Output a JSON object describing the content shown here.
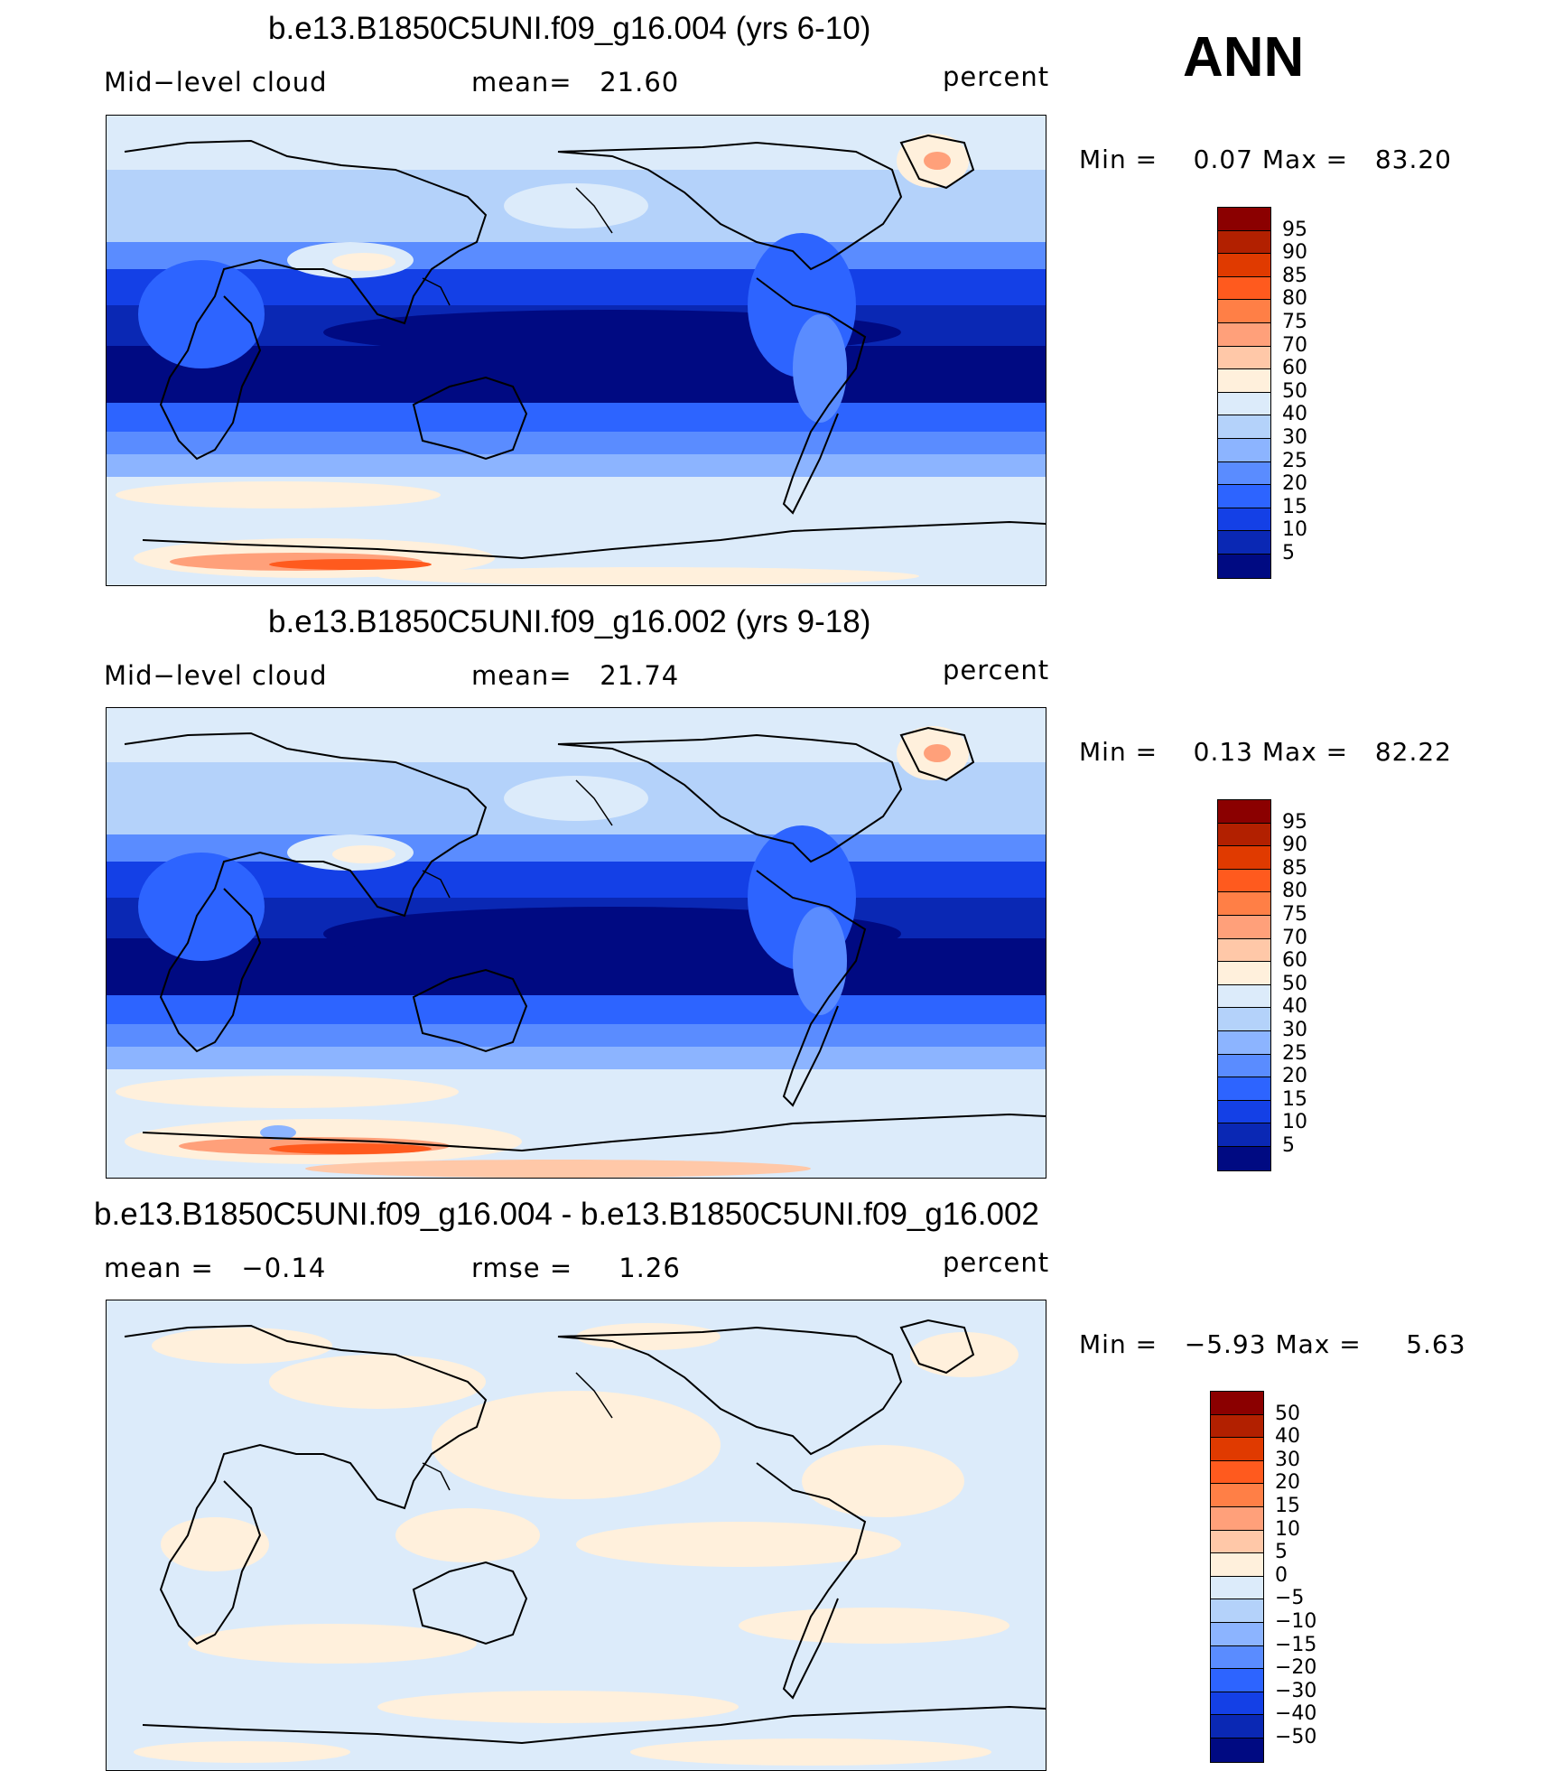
{
  "season": "ANN",
  "panels": [
    {
      "title": "b.e13.B1850C5UNI.f09_g16.004 (yrs 6-10)",
      "left_label": "Mid−level cloud",
      "center_label": "mean=   21.60",
      "right_label": "percent",
      "minmax": "Min =    0.07 Max =   83.20",
      "kind": "abs"
    },
    {
      "title": "b.e13.B1850C5UNI.f09_g16.002 (yrs 9-18)",
      "left_label": "Mid−level cloud",
      "center_label": "mean=   21.74",
      "right_label": "percent",
      "minmax": "Min =    0.13 Max =   82.22",
      "kind": "abs"
    },
    {
      "title": "b.e13.B1850C5UNI.f09_g16.004 - b.e13.B1850C5UNI.f09_g16.002",
      "left_label": "mean =   −0.14",
      "center_label": "rmse =     1.26",
      "right_label": "percent",
      "minmax": "Min =   −5.93 Max =     5.63",
      "kind": "diff"
    }
  ],
  "colorbar_abs": {
    "colors": [
      "#8b0000",
      "#b22000",
      "#e03a00",
      "#ff5a1e",
      "#ff7f46",
      "#ffa07a",
      "#ffc8a8",
      "#fff0dc",
      "#dcebfa",
      "#b4d2fa",
      "#8cb4ff",
      "#5a8cff",
      "#2d64ff",
      "#1440e6",
      "#0a28b4",
      "#000a82"
    ],
    "labels": [
      "95",
      "90",
      "85",
      "80",
      "75",
      "70",
      "60",
      "50",
      "40",
      "30",
      "25",
      "20",
      "15",
      "10",
      "5"
    ]
  },
  "colorbar_diff": {
    "colors": [
      "#8b0000",
      "#b22000",
      "#e03a00",
      "#ff5a1e",
      "#ff7f46",
      "#ffa07a",
      "#ffc8a8",
      "#fff0dc",
      "#dcebfa",
      "#b4d2fa",
      "#8cb4ff",
      "#5a8cff",
      "#2d64ff",
      "#1440e6",
      "#0a28b4",
      "#000a82"
    ],
    "labels": [
      "50",
      "40",
      "30",
      "20",
      "15",
      "10",
      "5",
      "0",
      "−5",
      "−10",
      "−15",
      "−20",
      "−30",
      "−40",
      "−50"
    ]
  }
}
